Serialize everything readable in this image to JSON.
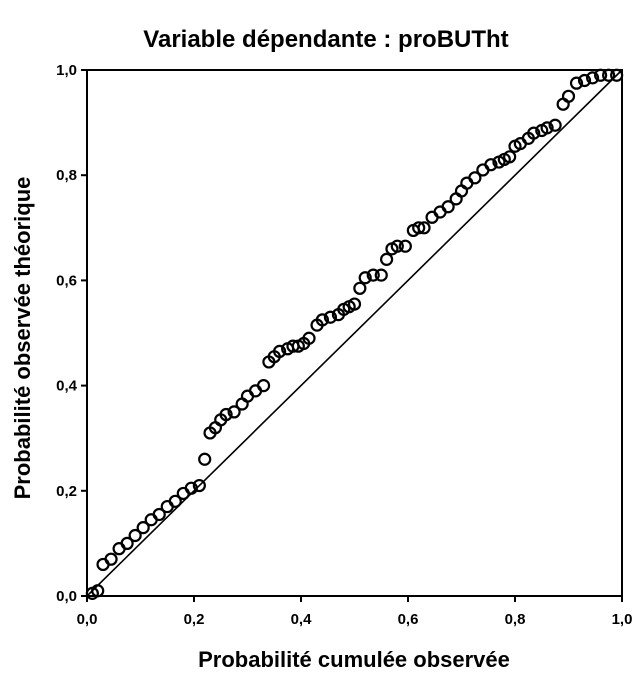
{
  "chart_data": {
    "type": "scatter",
    "title": "Variable dépendante : proBUTht",
    "xlabel": "Probabilité cumulée observée",
    "ylabel": "Probabilité observée théorique",
    "xlim": [
      0,
      1
    ],
    "ylim": [
      0,
      1
    ],
    "x_ticks": [
      "0,0",
      "0,2",
      "0,4",
      "0,6",
      "0,8",
      "1,0"
    ],
    "y_ticks": [
      "0,0",
      "0,2",
      "0,4",
      "0,6",
      "0,8",
      "1,0"
    ],
    "grid": false,
    "reference_line": {
      "from": [
        0,
        0
      ],
      "to": [
        1,
        1
      ]
    },
    "marker": "open-circle",
    "series": [
      {
        "x": [
          0.01,
          0.02,
          0.03,
          0.045,
          0.06,
          0.075,
          0.09,
          0.105,
          0.12,
          0.135,
          0.15,
          0.165,
          0.18,
          0.195,
          0.21,
          0.22,
          0.23,
          0.24,
          0.25,
          0.26,
          0.275,
          0.29,
          0.3,
          0.315,
          0.33,
          0.34,
          0.35,
          0.36,
          0.375,
          0.385,
          0.395,
          0.405,
          0.415,
          0.43,
          0.44,
          0.455,
          0.47,
          0.48,
          0.49,
          0.5,
          0.51,
          0.52,
          0.535,
          0.55,
          0.56,
          0.57,
          0.58,
          0.595,
          0.61,
          0.62,
          0.63,
          0.645,
          0.66,
          0.675,
          0.69,
          0.7,
          0.71,
          0.725,
          0.74,
          0.755,
          0.77,
          0.78,
          0.79,
          0.8,
          0.81,
          0.825,
          0.835,
          0.85,
          0.86,
          0.875,
          0.89,
          0.9,
          0.915,
          0.93,
          0.945,
          0.96,
          0.975,
          0.99
        ],
        "y": [
          0.005,
          0.01,
          0.06,
          0.07,
          0.09,
          0.1,
          0.115,
          0.13,
          0.145,
          0.155,
          0.17,
          0.18,
          0.195,
          0.205,
          0.21,
          0.26,
          0.31,
          0.32,
          0.335,
          0.345,
          0.35,
          0.365,
          0.38,
          0.39,
          0.4,
          0.445,
          0.455,
          0.465,
          0.47,
          0.475,
          0.475,
          0.48,
          0.49,
          0.515,
          0.525,
          0.53,
          0.535,
          0.545,
          0.55,
          0.555,
          0.585,
          0.605,
          0.61,
          0.61,
          0.64,
          0.66,
          0.665,
          0.665,
          0.695,
          0.7,
          0.7,
          0.72,
          0.73,
          0.74,
          0.755,
          0.77,
          0.785,
          0.795,
          0.81,
          0.82,
          0.825,
          0.83,
          0.835,
          0.855,
          0.86,
          0.87,
          0.88,
          0.885,
          0.89,
          0.895,
          0.935,
          0.95,
          0.975,
          0.98,
          0.985,
          0.99,
          0.99,
          0.99
        ]
      }
    ]
  }
}
